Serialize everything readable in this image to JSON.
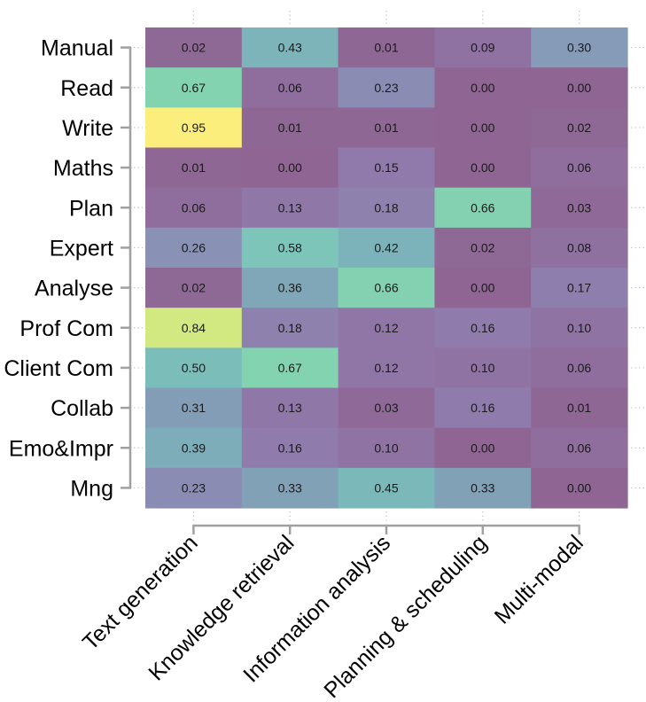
{
  "chart_data": {
    "type": "heatmap",
    "title": "",
    "xlabel": "",
    "ylabel": "",
    "categories_x": [
      "Text generation",
      "Knowledge retrieval",
      "Information analysis",
      "Planning & scheduling",
      "Multi-modal"
    ],
    "categories_y": [
      "Manual",
      "Read",
      "Write",
      "Maths",
      "Plan",
      "Expert",
      "Analyse",
      "Prof Com",
      "Client Com",
      "Collab",
      "Emo&Impr",
      "Mng"
    ],
    "values": [
      [
        0.02,
        0.43,
        0.01,
        0.09,
        0.3
      ],
      [
        0.67,
        0.06,
        0.23,
        0.0,
        0.0
      ],
      [
        0.95,
        0.01,
        0.01,
        0.0,
        0.02
      ],
      [
        0.01,
        0.0,
        0.15,
        0.0,
        0.06
      ],
      [
        0.06,
        0.13,
        0.18,
        0.66,
        0.03
      ],
      [
        0.26,
        0.58,
        0.42,
        0.02,
        0.08
      ],
      [
        0.02,
        0.36,
        0.66,
        0.0,
        0.17
      ],
      [
        0.84,
        0.18,
        0.12,
        0.16,
        0.1
      ],
      [
        0.5,
        0.67,
        0.12,
        0.1,
        0.06
      ],
      [
        0.31,
        0.13,
        0.03,
        0.16,
        0.01
      ],
      [
        0.39,
        0.16,
        0.1,
        0.0,
        0.06
      ],
      [
        0.23,
        0.33,
        0.45,
        0.33,
        0.0
      ]
    ],
    "value_format": "0.00",
    "color_range": [
      0,
      1
    ],
    "colormap": "viridis (muted)",
    "legend": "none",
    "grid": false
  },
  "colors": {
    "scale_stops": [
      {
        "v": 0.0,
        "c": "#8f6693"
      },
      {
        "v": 0.15,
        "c": "#8f7aab"
      },
      {
        "v": 0.25,
        "c": "#8a90b5"
      },
      {
        "v": 0.35,
        "c": "#7fa5b8"
      },
      {
        "v": 0.45,
        "c": "#7bb8b9"
      },
      {
        "v": 0.58,
        "c": "#7cc5b8"
      },
      {
        "v": 0.67,
        "c": "#84d3b0"
      },
      {
        "v": 0.84,
        "c": "#d2e880"
      },
      {
        "v": 0.95,
        "c": "#fcee7c"
      },
      {
        "v": 1.0,
        "c": "#fdf07a"
      }
    ],
    "axis": "#a0a0a0",
    "text": "#1a1a1a"
  }
}
